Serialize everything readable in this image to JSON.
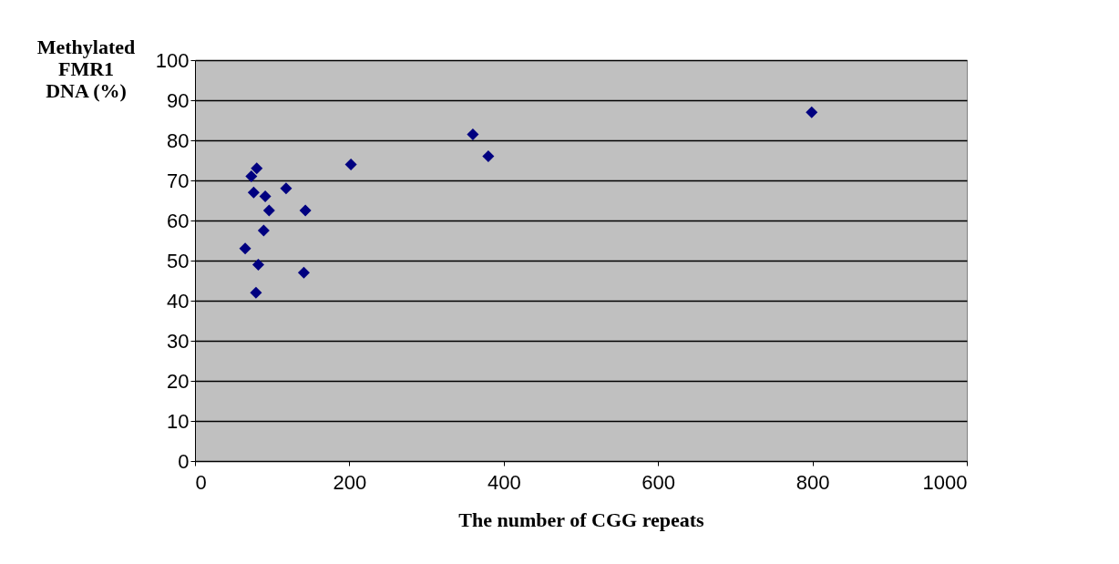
{
  "chart_data": {
    "type": "scatter",
    "ylabel": "Methylated FMR1 DNA (%)",
    "xlabel": "The number of CGG repeats",
    "x": [
      80,
      73,
      76,
      91,
      118,
      96,
      143,
      89,
      65,
      82,
      141,
      79,
      202,
      360,
      380,
      799
    ],
    "series": [
      {
        "color": "#000080",
        "values": [
          73,
          71,
          67,
          66,
          68,
          62.5,
          62.5,
          57.5,
          53,
          49,
          47,
          42,
          74,
          81.5,
          76,
          87
        ]
      }
    ],
    "xlim": [
      0,
      1000
    ],
    "xticks": [
      0,
      200,
      400,
      600,
      800,
      1000
    ],
    "ylim": [
      0,
      100
    ],
    "yticks": [
      0,
      10,
      20,
      30,
      40,
      50,
      60,
      70,
      80,
      90,
      100
    ],
    "grid": "y",
    "marker": "diamond",
    "legend": false
  }
}
